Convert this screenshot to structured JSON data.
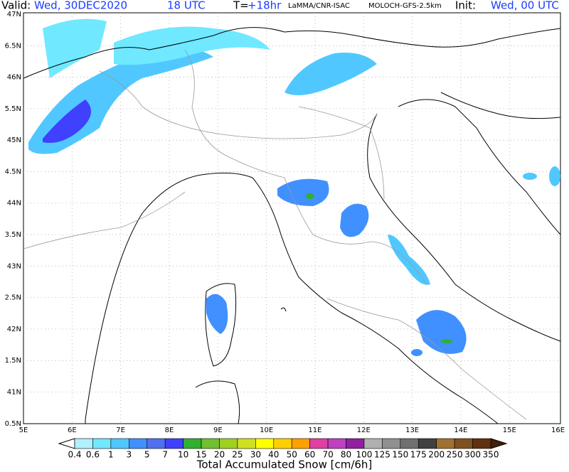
{
  "header": {
    "valid_label": "Valid:",
    "valid_date": "Wed, 30DEC2020",
    "valid_time": "18 UTC",
    "lead_label": "T=",
    "lead_time": "+18hr",
    "source": "LaMMA/CNR-ISAC",
    "model": "MOLOCH-GFS-2.5km",
    "init_label": "Init:",
    "init_time": "Wed, 00 UTC"
  },
  "lat_labels": [
    "47N",
    "6.5N",
    "46N",
    "5.5N",
    "45N",
    "4.5N",
    "44N",
    "3.5N",
    "43N",
    "2.5N",
    "42N",
    "1.5N",
    "41N",
    "0.5N"
  ],
  "lon_labels": [
    "5E",
    "6E",
    "7E",
    "8E",
    "9E",
    "10E",
    "11E",
    "12E",
    "13E",
    "14E",
    "15E",
    "16E"
  ],
  "colorbar": {
    "title": "Total Accumulated Snow [cm/6h]",
    "labels": [
      "0.4",
      "0.6",
      "1",
      "3",
      "5",
      "7",
      "10",
      "15",
      "20",
      "25",
      "30",
      "40",
      "50",
      "60",
      "70",
      "80",
      "100",
      "125",
      "150",
      "175",
      "200",
      "250",
      "300",
      "350"
    ],
    "colors": [
      "#b0f0ff",
      "#70e8ff",
      "#50c8ff",
      "#4090ff",
      "#5070f0",
      "#4040ff",
      "#30b030",
      "#70c030",
      "#a0d020",
      "#d0e020",
      "#ffff00",
      "#ffd000",
      "#ffa000",
      "#e040a0",
      "#c040c0",
      "#9020a0",
      "#b0b0b0",
      "#909090",
      "#707070",
      "#404040",
      "#a07030",
      "#805020",
      "#603010"
    ],
    "under_color": "#ffffff",
    "over_color": "#402008"
  }
}
